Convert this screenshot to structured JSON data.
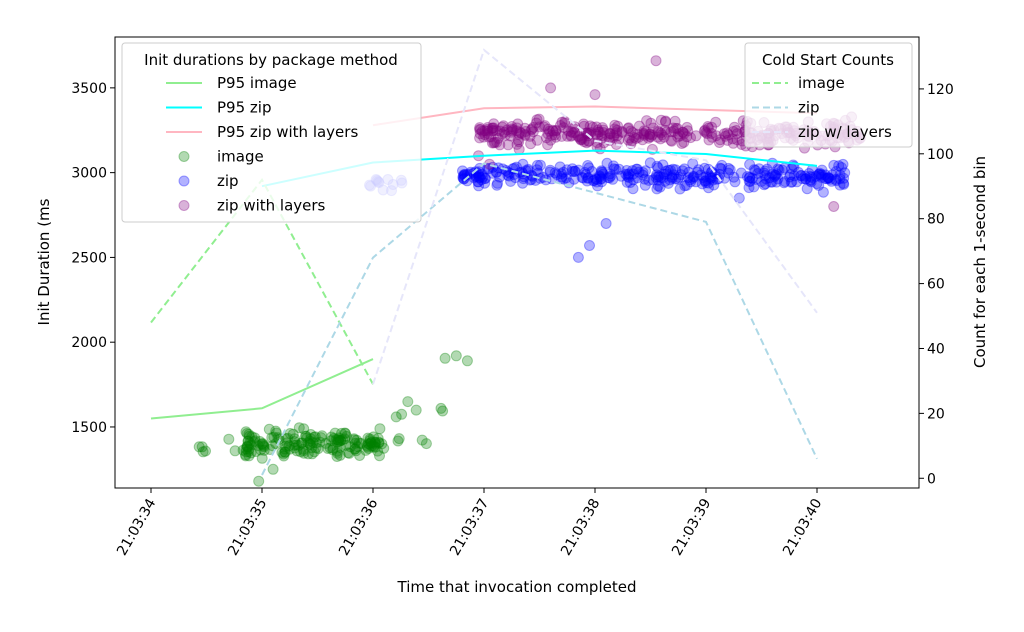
{
  "chart_data": {
    "type": "scatter",
    "xlabel": "Time that invocation completed",
    "ylabel_left": "Init Duration (ms",
    "ylabel_right": "Count for each 1-second bin",
    "ylim_left": [
      1140,
      3800
    ],
    "ylim_right": [
      -3,
      136
    ],
    "xlim": [
      -0.35,
      6.92
    ],
    "left_ticks": [
      1500,
      2000,
      2500,
      3000,
      3500
    ],
    "right_ticks": [
      0,
      20,
      40,
      60,
      80,
      100,
      120
    ],
    "x_ticks": [
      {
        "x": 0,
        "label": "21:03:34"
      },
      {
        "x": 1,
        "label": "21:03:35"
      },
      {
        "x": 2,
        "label": "21:03:36"
      },
      {
        "x": 3,
        "label": "21:03:37"
      },
      {
        "x": 4,
        "label": "21:03:38"
      },
      {
        "x": 5,
        "label": "21:03:39"
      },
      {
        "x": 6,
        "label": "21:03:40"
      }
    ],
    "legend_left": {
      "title": "Init durations by package method",
      "position": "upper-left",
      "items": [
        "P95 image",
        "P95 zip",
        "P95 zip with layers",
        "image",
        "zip",
        "zip with layers"
      ]
    },
    "legend_right": {
      "title": "Cold Start Counts",
      "position": "upper-right",
      "items": [
        "image",
        "zip",
        "zip w/ layers"
      ]
    },
    "series": [
      {
        "name": "P95 image",
        "kind": "p95",
        "axis": "left",
        "color": "#90ee90",
        "points": [
          [
            0,
            1550
          ],
          [
            1,
            1610
          ],
          [
            2,
            1900
          ]
        ]
      },
      {
        "name": "P95 zip",
        "kind": "p95",
        "axis": "left",
        "color": "#00ffff",
        "points": [
          [
            1,
            2920
          ],
          [
            2,
            3060
          ],
          [
            3,
            3100
          ],
          [
            4,
            3130
          ],
          [
            5,
            3110
          ],
          [
            6,
            3040
          ]
        ]
      },
      {
        "name": "P95 zip with layers",
        "kind": "p95",
        "axis": "left",
        "color": "#ffb6c1",
        "points": [
          [
            2,
            3280
          ],
          [
            3,
            3380
          ],
          [
            4,
            3390
          ],
          [
            5,
            3370
          ],
          [
            6,
            3350
          ]
        ]
      },
      {
        "name": "image",
        "kind": "scatter",
        "color": "#008000",
        "x_range": [
          0.42,
          2.82
        ],
        "y_range": [
          1180,
          1930
        ]
      },
      {
        "name": "zip",
        "kind": "scatter",
        "color": "#0000ff",
        "x_range": [
          1.95,
          6.25
        ],
        "y_range": [
          2500,
          3120
        ]
      },
      {
        "name": "zip with layers",
        "kind": "scatter",
        "color": "#800080",
        "x_range": [
          2.9,
          6.45
        ],
        "y_range": [
          2800,
          3660
        ]
      },
      {
        "name": "image",
        "kind": "count",
        "axis": "right",
        "color": "#90ee90",
        "points": [
          [
            0,
            48
          ],
          [
            1,
            92
          ],
          [
            2,
            29
          ]
        ]
      },
      {
        "name": "zip",
        "kind": "count",
        "axis": "right",
        "color": "#add8e6",
        "points": [
          [
            1,
            1
          ],
          [
            2,
            68
          ],
          [
            3,
            97
          ],
          [
            4,
            88
          ],
          [
            5,
            79
          ],
          [
            6,
            6
          ]
        ]
      },
      {
        "name": "zip w/ layers",
        "kind": "count",
        "axis": "right",
        "color": "#e6e6fa",
        "points": [
          [
            2,
            29
          ],
          [
            3,
            132
          ],
          [
            4,
            104
          ],
          [
            5,
            98
          ],
          [
            6,
            51
          ]
        ]
      }
    ]
  }
}
